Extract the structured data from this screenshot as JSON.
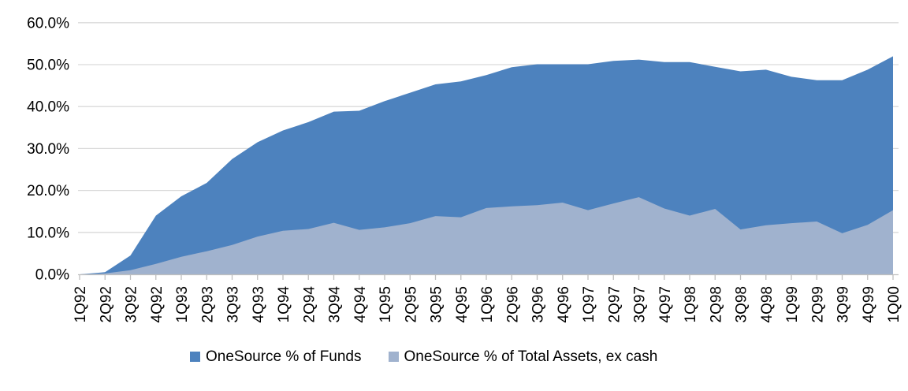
{
  "chart_data": {
    "type": "area",
    "title": "",
    "categories": [
      "1Q92",
      "2Q92",
      "3Q92",
      "4Q92",
      "1Q93",
      "2Q93",
      "3Q93",
      "4Q93",
      "1Q94",
      "2Q94",
      "3Q94",
      "4Q94",
      "1Q95",
      "2Q95",
      "3Q95",
      "4Q95",
      "1Q96",
      "2Q96",
      "3Q96",
      "4Q96",
      "1Q97",
      "2Q97",
      "3Q97",
      "4Q97",
      "1Q98",
      "2Q98",
      "3Q98",
      "4Q98",
      "1Q99",
      "2Q99",
      "3Q99",
      "4Q99",
      "1Q00"
    ],
    "series": [
      {
        "name": "OneSource % of Funds",
        "color": "#4D82BE",
        "values": [
          0.0,
          0.5,
          4.5,
          14.0,
          18.6,
          21.8,
          27.5,
          31.5,
          34.3,
          36.3,
          38.8,
          39.0,
          41.3,
          43.3,
          45.3,
          46.0,
          47.5,
          49.4,
          50.1,
          50.1,
          50.1,
          50.9,
          51.2,
          50.6,
          50.6,
          49.5,
          48.4,
          48.8,
          47.1,
          46.3,
          46.3,
          48.8,
          52.0
        ]
      },
      {
        "name": "OneSource % of Total Assets, ex cash",
        "color": "#A0B2CE",
        "values": [
          0.0,
          0.2,
          1.0,
          2.5,
          4.2,
          5.5,
          7.0,
          9.0,
          10.4,
          10.8,
          12.3,
          10.6,
          11.2,
          12.2,
          13.9,
          13.6,
          15.8,
          16.2,
          16.5,
          17.1,
          15.3,
          16.9,
          18.4,
          15.7,
          14.0,
          15.6,
          10.7,
          11.7,
          12.2,
          12.6,
          9.8,
          11.8,
          15.3
        ]
      }
    ],
    "ylim": [
      0,
      60
    ],
    "yticks": [
      {
        "value": 0,
        "label": "0.0%"
      },
      {
        "value": 10,
        "label": "10.0%"
      },
      {
        "value": 20,
        "label": "20.0%"
      },
      {
        "value": 30,
        "label": "30.0%"
      },
      {
        "value": 40,
        "label": "40.0%"
      },
      {
        "value": 50,
        "label": "50.0%"
      },
      {
        "value": 60,
        "label": "60.0%"
      }
    ],
    "grid": "horizontal",
    "legend_position": "bottom",
    "gridline_color": "#D9D9D9",
    "axis_color": "#BFBFBF",
    "text_color": "#000000"
  }
}
